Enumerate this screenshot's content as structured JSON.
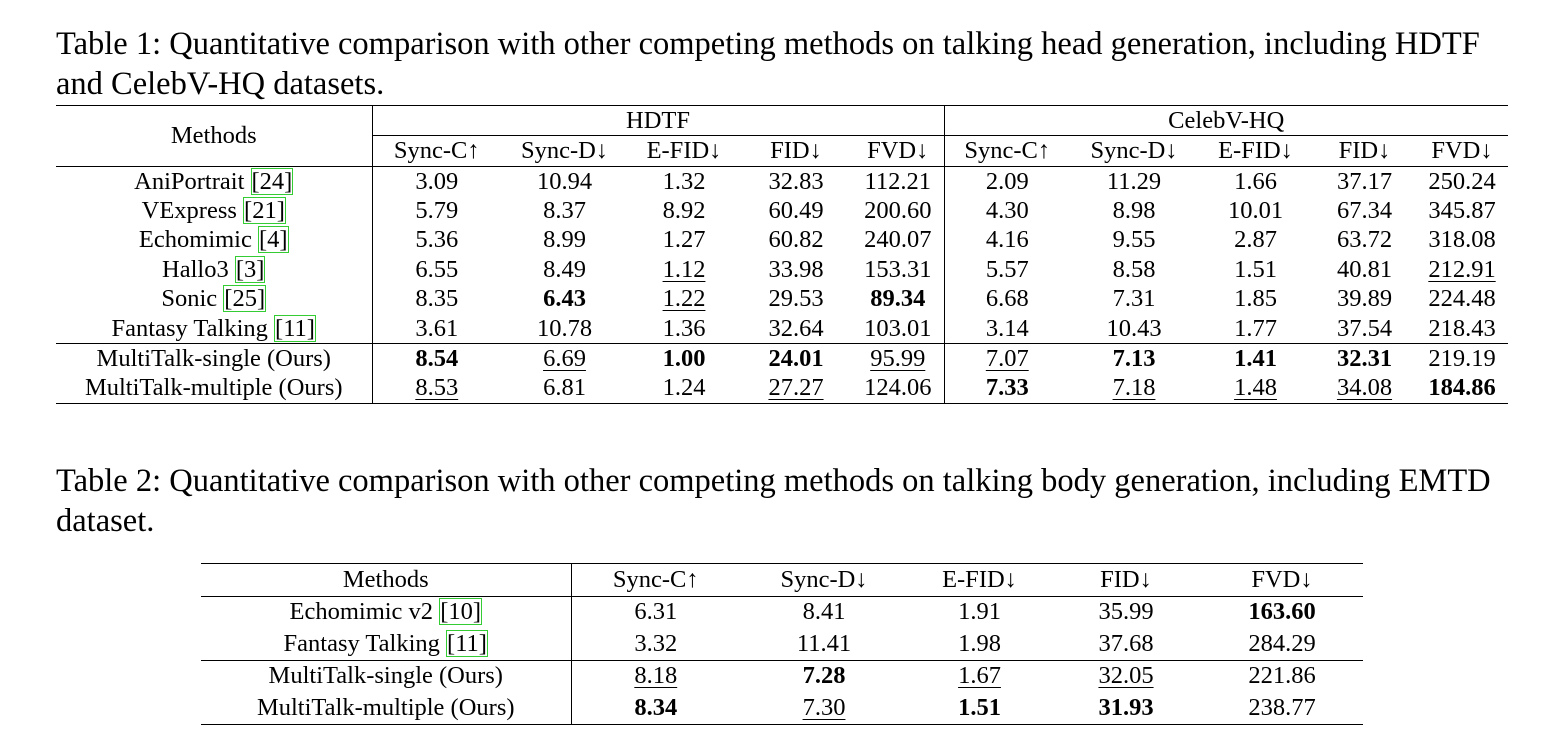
{
  "table1": {
    "caption": "Table 1: Quantitative comparison with other competing methods on talking head generation, including HDTF and CelebV-HQ datasets.",
    "methods_header": "Methods",
    "groups": [
      "HDTF",
      "CelebV-HQ"
    ],
    "metrics": [
      "Sync-C↑",
      "Sync-D↓",
      "E-FID↓",
      "FID↓",
      "FVD↓"
    ],
    "rows": [
      {
        "name": "AniPortrait",
        "ref": "[24]",
        "values": [
          "3.09",
          "10.94",
          "1.32",
          "32.83",
          "112.21",
          "2.09",
          "11.29",
          "1.66",
          "37.17",
          "250.24"
        ],
        "bold": [],
        "underline": []
      },
      {
        "name": "VExpress",
        "ref": "[21]",
        "values": [
          "5.79",
          "8.37",
          "8.92",
          "60.49",
          "200.60",
          "4.30",
          "8.98",
          "10.01",
          "67.34",
          "345.87"
        ],
        "bold": [],
        "underline": []
      },
      {
        "name": "Echomimic",
        "ref": "[4]",
        "values": [
          "5.36",
          "8.99",
          "1.27",
          "60.82",
          "240.07",
          "4.16",
          "9.55",
          "2.87",
          "63.72",
          "318.08"
        ],
        "bold": [],
        "underline": []
      },
      {
        "name": "Hallo3",
        "ref": "[3]",
        "values": [
          "6.55",
          "8.49",
          "1.12",
          "33.98",
          "153.31",
          "5.57",
          "8.58",
          "1.51",
          "40.81",
          "212.91"
        ],
        "bold": [],
        "underline": [
          2,
          9
        ]
      },
      {
        "name": "Sonic",
        "ref": "[25]",
        "values": [
          "8.35",
          "6.43",
          "1.22",
          "29.53",
          "89.34",
          "6.68",
          "7.31",
          "1.85",
          "39.89",
          "224.48"
        ],
        "bold": [
          1,
          4
        ],
        "underline": [
          2
        ]
      },
      {
        "name": "Fantasy Talking",
        "ref": "[11]",
        "values": [
          "3.61",
          "10.78",
          "1.36",
          "32.64",
          "103.01",
          "3.14",
          "10.43",
          "1.77",
          "37.54",
          "218.43"
        ],
        "bold": [],
        "underline": []
      },
      {
        "name": "MultiTalk-single (Ours)",
        "ref": "",
        "values": [
          "8.54",
          "6.69",
          "1.00",
          "24.01",
          "95.99",
          "7.07",
          "7.13",
          "1.41",
          "32.31",
          "219.19"
        ],
        "bold": [
          0,
          2,
          3,
          6,
          7,
          8
        ],
        "underline": [
          1,
          4,
          5
        ]
      },
      {
        "name": "MultiTalk-multiple (Ours)",
        "ref": "",
        "values": [
          "8.53",
          "6.81",
          "1.24",
          "27.27",
          "124.06",
          "7.33",
          "7.18",
          "1.48",
          "34.08",
          "184.86"
        ],
        "bold": [
          5,
          9
        ],
        "underline": [
          0,
          3,
          6,
          7,
          8
        ]
      }
    ]
  },
  "table2": {
    "caption": "Table 2: Quantitative comparison with other competing methods on talking body generation, including EMTD dataset.",
    "methods_header": "Methods",
    "metrics": [
      "Sync-C↑",
      "Sync-D↓",
      "E-FID↓",
      "FID↓",
      "FVD↓"
    ],
    "rows": [
      {
        "name": "Echomimic v2",
        "ref": "[10]",
        "values": [
          "6.31",
          "8.41",
          "1.91",
          "35.99",
          "163.60"
        ],
        "bold": [
          4
        ],
        "underline": []
      },
      {
        "name": "Fantasy Talking",
        "ref": "[11]",
        "values": [
          "3.32",
          "11.41",
          "1.98",
          "37.68",
          "284.29"
        ],
        "bold": [],
        "underline": []
      },
      {
        "name": "MultiTalk-single (Ours)",
        "ref": "",
        "values": [
          "8.18",
          "7.28",
          "1.67",
          "32.05",
          "221.86"
        ],
        "bold": [
          1
        ],
        "underline": [
          0,
          2,
          3
        ]
      },
      {
        "name": "MultiTalk-multiple (Ours)",
        "ref": "",
        "values": [
          "8.34",
          "7.30",
          "1.51",
          "31.93",
          "238.77"
        ],
        "bold": [
          0,
          2,
          3
        ],
        "underline": [
          1
        ]
      }
    ]
  }
}
